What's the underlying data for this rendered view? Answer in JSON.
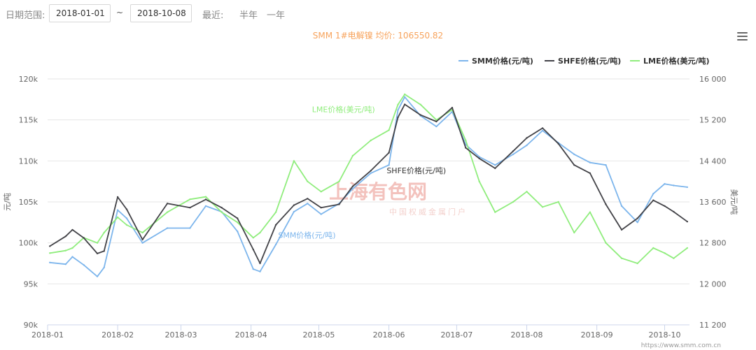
{
  "toolbar": {
    "date_range_label": "日期范围:",
    "start_date": "2018-01-01",
    "separator": "~",
    "end_date": "2018-10-08",
    "recent_label": "最近:",
    "half_year": "半年",
    "one_year": "一年"
  },
  "watermark": {
    "cn": "上海有色网",
    "sub": "中国权威金属门户",
    "url": "https://www.smm.com.cn"
  },
  "chart_data": {
    "type": "line",
    "title": "SMM 1#电解镍 均价: 106550.82",
    "y_left": {
      "label": "元/吨",
      "min": 90000,
      "max": 120000,
      "ticks": [
        "90k",
        "95k",
        "100k",
        "105k",
        "110k",
        "115k",
        "120k"
      ]
    },
    "y_right": {
      "label": "美元/吨",
      "min": 11200,
      "max": 16000,
      "ticks": [
        "11 200",
        "12 000",
        "12 800",
        "13 600",
        "14 400",
        "15 200",
        "16 000"
      ]
    },
    "x_domain": [
      "2018-01-01",
      "2018-10-12"
    ],
    "x_ticks": [
      "2018-01",
      "2018-02",
      "2018-03",
      "2018-04",
      "2018-05",
      "2018-06",
      "2018-07",
      "2018-08",
      "2018-09",
      "2018-10"
    ],
    "legend_position": "top-right",
    "colors": {
      "SMM": "#7cb5ec",
      "SHFE": "#434348",
      "LME": "#90ed7d",
      "title": "#f7a35c"
    },
    "series": [
      {
        "name": "SMM价格(元/吨)",
        "axis": "left",
        "inline_label": "SMM价格(元/吨)",
        "points": [
          [
            "2018-01-02",
            97600
          ],
          [
            "2018-01-09",
            97400
          ],
          [
            "2018-01-12",
            98300
          ],
          [
            "2018-01-17",
            97300
          ],
          [
            "2018-01-23",
            95900
          ],
          [
            "2018-01-26",
            97000
          ],
          [
            "2018-02-01",
            104000
          ],
          [
            "2018-02-05",
            103000
          ],
          [
            "2018-02-12",
            100000
          ],
          [
            "2018-02-23",
            101800
          ],
          [
            "2018-03-05",
            101800
          ],
          [
            "2018-03-12",
            104500
          ],
          [
            "2018-03-19",
            103800
          ],
          [
            "2018-03-26",
            101400
          ],
          [
            "2018-04-02",
            96800
          ],
          [
            "2018-04-05",
            96500
          ],
          [
            "2018-04-12",
            99800
          ],
          [
            "2018-04-20",
            103800
          ],
          [
            "2018-04-26",
            104800
          ],
          [
            "2018-05-02",
            103500
          ],
          [
            "2018-05-10",
            104800
          ],
          [
            "2018-05-16",
            106600
          ],
          [
            "2018-05-24",
            108500
          ],
          [
            "2018-06-01",
            109500
          ],
          [
            "2018-06-05",
            116200
          ],
          [
            "2018-06-08",
            117800
          ],
          [
            "2018-06-15",
            115500
          ],
          [
            "2018-06-22",
            114200
          ],
          [
            "2018-06-29",
            116000
          ],
          [
            "2018-07-05",
            112000
          ],
          [
            "2018-07-11",
            110500
          ],
          [
            "2018-07-18",
            109500
          ],
          [
            "2018-07-26",
            110800
          ],
          [
            "2018-08-01",
            111900
          ],
          [
            "2018-08-08",
            113700
          ],
          [
            "2018-08-15",
            112200
          ],
          [
            "2018-08-22",
            110800
          ],
          [
            "2018-08-29",
            109800
          ],
          [
            "2018-09-05",
            109500
          ],
          [
            "2018-09-12",
            104500
          ],
          [
            "2018-09-19",
            102500
          ],
          [
            "2018-09-26",
            106000
          ],
          [
            "2018-10-01",
            107200
          ],
          [
            "2018-10-05",
            107000
          ],
          [
            "2018-10-11",
            106800
          ]
        ]
      },
      {
        "name": "SHFE价格(元/吨)",
        "axis": "left",
        "inline_label": "SHFE价格(元/吨)",
        "points": [
          [
            "2018-01-02",
            99600
          ],
          [
            "2018-01-09",
            100800
          ],
          [
            "2018-01-12",
            101600
          ],
          [
            "2018-01-17",
            100600
          ],
          [
            "2018-01-23",
            98700
          ],
          [
            "2018-01-26",
            99000
          ],
          [
            "2018-02-01",
            105600
          ],
          [
            "2018-02-05",
            104100
          ],
          [
            "2018-02-12",
            100400
          ],
          [
            "2018-02-23",
            104800
          ],
          [
            "2018-03-05",
            104300
          ],
          [
            "2018-03-12",
            105300
          ],
          [
            "2018-03-19",
            104300
          ],
          [
            "2018-03-26",
            103000
          ],
          [
            "2018-04-02",
            99200
          ],
          [
            "2018-04-05",
            97500
          ],
          [
            "2018-04-12",
            102200
          ],
          [
            "2018-04-20",
            104600
          ],
          [
            "2018-04-26",
            105400
          ],
          [
            "2018-05-02",
            104300
          ],
          [
            "2018-05-10",
            104700
          ],
          [
            "2018-05-16",
            106900
          ],
          [
            "2018-05-24",
            108800
          ],
          [
            "2018-06-01",
            111000
          ],
          [
            "2018-06-05",
            115300
          ],
          [
            "2018-06-08",
            116900
          ],
          [
            "2018-06-15",
            115600
          ],
          [
            "2018-06-22",
            114800
          ],
          [
            "2018-06-29",
            116500
          ],
          [
            "2018-07-05",
            111600
          ],
          [
            "2018-07-11",
            110300
          ],
          [
            "2018-07-18",
            109100
          ],
          [
            "2018-07-26",
            111200
          ],
          [
            "2018-08-01",
            112800
          ],
          [
            "2018-08-08",
            114000
          ],
          [
            "2018-08-15",
            112100
          ],
          [
            "2018-08-22",
            109500
          ],
          [
            "2018-08-29",
            108500
          ],
          [
            "2018-09-05",
            104700
          ],
          [
            "2018-09-12",
            101600
          ],
          [
            "2018-09-19",
            103000
          ],
          [
            "2018-09-26",
            105200
          ],
          [
            "2018-10-01",
            104500
          ],
          [
            "2018-10-05",
            103800
          ],
          [
            "2018-10-11",
            102600
          ]
        ]
      },
      {
        "name": "LME价格(美元/吨)",
        "axis": "right",
        "inline_label": "LME价格(美元/吨)",
        "points": [
          [
            "2018-01-02",
            12600
          ],
          [
            "2018-01-09",
            12650
          ],
          [
            "2018-01-12",
            12700
          ],
          [
            "2018-01-17",
            12900
          ],
          [
            "2018-01-23",
            12800
          ],
          [
            "2018-01-26",
            13000
          ],
          [
            "2018-02-01",
            13300
          ],
          [
            "2018-02-05",
            13150
          ],
          [
            "2018-02-12",
            13000
          ],
          [
            "2018-02-23",
            13400
          ],
          [
            "2018-03-05",
            13650
          ],
          [
            "2018-03-12",
            13700
          ],
          [
            "2018-03-19",
            13400
          ],
          [
            "2018-03-26",
            13200
          ],
          [
            "2018-04-02",
            12900
          ],
          [
            "2018-04-05",
            13000
          ],
          [
            "2018-04-12",
            13400
          ],
          [
            "2018-04-20",
            14400
          ],
          [
            "2018-04-26",
            14000
          ],
          [
            "2018-05-02",
            13800
          ],
          [
            "2018-05-10",
            14000
          ],
          [
            "2018-05-16",
            14500
          ],
          [
            "2018-05-24",
            14800
          ],
          [
            "2018-06-01",
            15000
          ],
          [
            "2018-06-05",
            15500
          ],
          [
            "2018-06-08",
            15700
          ],
          [
            "2018-06-15",
            15500
          ],
          [
            "2018-06-22",
            15200
          ],
          [
            "2018-06-29",
            15400
          ],
          [
            "2018-07-05",
            14800
          ],
          [
            "2018-07-11",
            14000
          ],
          [
            "2018-07-18",
            13400
          ],
          [
            "2018-07-26",
            13600
          ],
          [
            "2018-08-01",
            13800
          ],
          [
            "2018-08-08",
            13500
          ],
          [
            "2018-08-15",
            13600
          ],
          [
            "2018-08-22",
            13000
          ],
          [
            "2018-08-29",
            13400
          ],
          [
            "2018-09-05",
            12800
          ],
          [
            "2018-09-12",
            12500
          ],
          [
            "2018-09-19",
            12400
          ],
          [
            "2018-09-26",
            12700
          ],
          [
            "2018-10-01",
            12600
          ],
          [
            "2018-10-05",
            12500
          ],
          [
            "2018-10-11",
            12700
          ]
        ]
      }
    ]
  }
}
